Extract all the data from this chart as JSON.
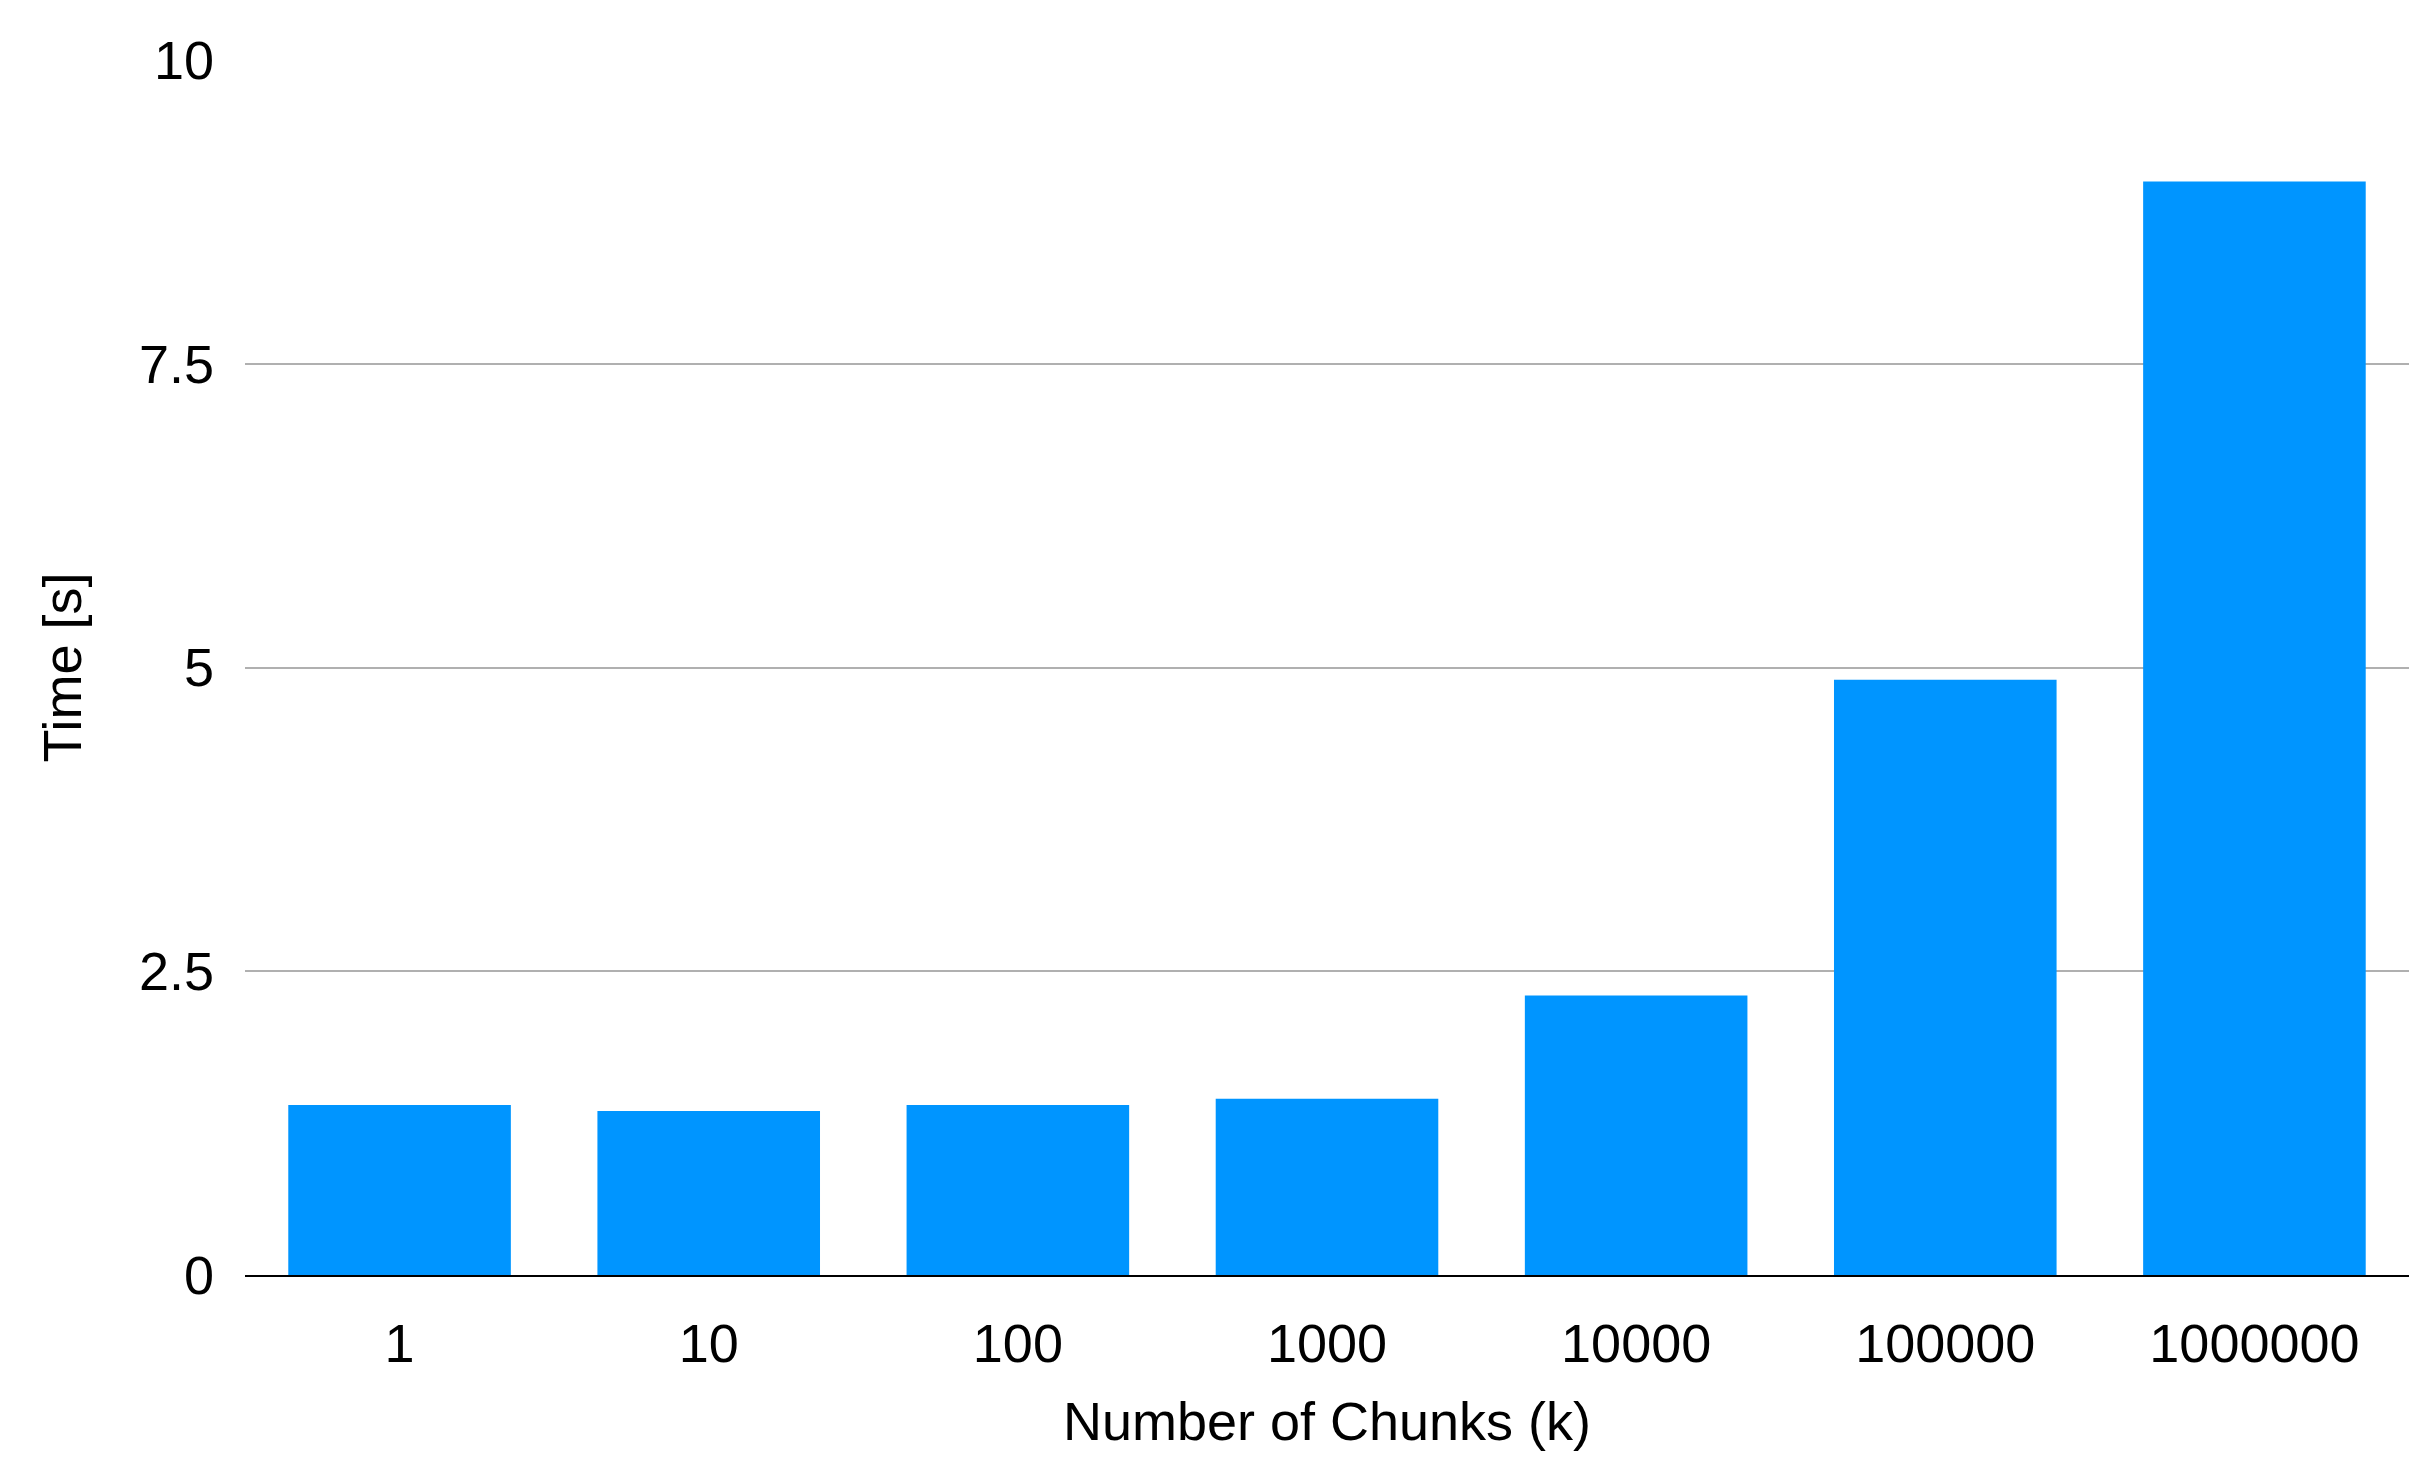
{
  "chart_data": {
    "type": "bar",
    "xlabel": "Number of Chunks (k)",
    "ylabel": "Time [s]",
    "categories": [
      "1",
      "10",
      "100",
      "1000",
      "10000",
      "100000",
      "1000000"
    ],
    "values": [
      1.4,
      1.35,
      1.4,
      1.45,
      2.3,
      4.9,
      9.0
    ],
    "color": "#0095ff",
    "ylim": [
      0,
      10
    ],
    "yticks": [
      0,
      2.5,
      5,
      7.5,
      10
    ],
    "grid": "y"
  }
}
